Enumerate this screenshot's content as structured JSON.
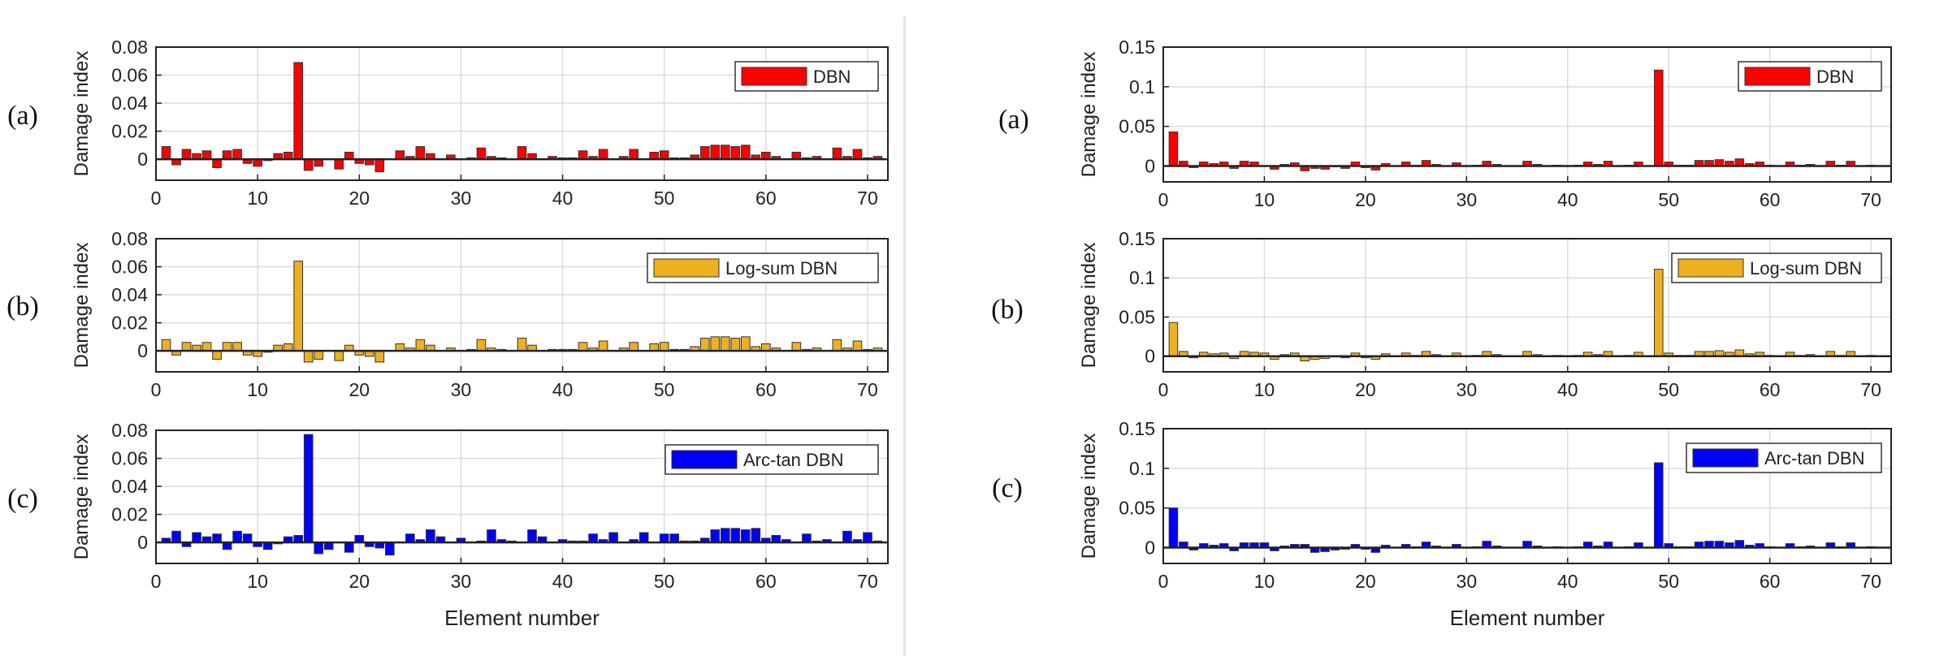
{
  "colors": {
    "a": "#ff0000",
    "b": "#edb120",
    "c": "#0000ff",
    "grid": "#dcdcdc",
    "axis": "#222222"
  },
  "chart_data": [
    {
      "type": "bar",
      "panel_label": "(a)",
      "legend": "DBN",
      "color": "#ff0000",
      "ylabel": "Damage index",
      "xlabel": "",
      "title": "",
      "xlim": [
        0,
        72
      ],
      "ylim": [
        -0.015,
        0.08
      ],
      "xticks": [
        "0",
        "10",
        "20",
        "30",
        "40",
        "50",
        "60",
        "70"
      ],
      "yticks": [
        "0",
        "0.02",
        "0.04",
        "0.06",
        "0.08"
      ],
      "ytick_values": [
        0,
        0.02,
        0.04,
        0.06,
        0.08
      ],
      "values": [
        0,
        0.009,
        -0.004,
        0.007,
        0.004,
        0.006,
        -0.006,
        0.006,
        0.007,
        -0.003,
        -0.005,
        -0.001,
        0.004,
        0.005,
        0.069,
        -0.008,
        -0.005,
        0,
        -0.007,
        0.005,
        -0.003,
        -0.004,
        -0.009,
        0,
        0.006,
        0.002,
        0.009,
        0.004,
        0,
        0.003,
        0,
        0.001,
        0.008,
        0.002,
        0.001,
        0,
        0.009,
        0.004,
        0,
        0.002,
        0.001,
        0.001,
        0.006,
        0.002,
        0.007,
        0,
        0.002,
        0.007,
        0,
        0.005,
        0.006,
        0.001,
        0.001,
        0.003,
        0.009,
        0.01,
        0.01,
        0.009,
        0.01,
        0.003,
        0.005,
        0.002,
        0,
        0.005,
        0.001,
        0.002,
        0,
        0.008,
        0.002,
        0.007,
        0.001,
        0.002
      ]
    },
    {
      "type": "bar",
      "panel_label": "(b)",
      "legend": "Log-sum DBN",
      "color": "#edb120",
      "ylabel": "Damage index",
      "xlabel": "",
      "title": "",
      "xlim": [
        0,
        72
      ],
      "ylim": [
        -0.015,
        0.08
      ],
      "xticks": [
        "0",
        "10",
        "20",
        "30",
        "40",
        "50",
        "60",
        "70"
      ],
      "yticks": [
        "0",
        "0.02",
        "0.04",
        "0.06",
        "0.08"
      ],
      "ytick_values": [
        0,
        0.02,
        0.04,
        0.06,
        0.08
      ],
      "values": [
        0,
        0.008,
        -0.003,
        0.006,
        0.004,
        0.006,
        -0.006,
        0.006,
        0.006,
        -0.003,
        -0.004,
        -0.001,
        0.004,
        0.005,
        0.064,
        -0.008,
        -0.006,
        0,
        -0.007,
        0.004,
        -0.003,
        -0.004,
        -0.008,
        0,
        0.005,
        0.002,
        0.008,
        0.004,
        0,
        0.002,
        0,
        0.001,
        0.008,
        0.002,
        0.001,
        0,
        0.009,
        0.004,
        0,
        0.001,
        0.001,
        0.001,
        0.006,
        0.002,
        0.007,
        0,
        0.002,
        0.006,
        0,
        0.005,
        0.006,
        0.001,
        0.001,
        0.003,
        0.009,
        0.01,
        0.01,
        0.009,
        0.01,
        0.003,
        0.005,
        0.002,
        0,
        0.006,
        0.001,
        0.002,
        0,
        0.008,
        0.002,
        0.007,
        0.001,
        0.002
      ]
    },
    {
      "type": "bar",
      "panel_label": "(c)",
      "legend": "Arc-tan DBN",
      "color": "#0000ff",
      "ylabel": "Damage index",
      "xlabel": "Element number",
      "title": "",
      "xlim": [
        0,
        72
      ],
      "ylim": [
        -0.015,
        0.08
      ],
      "xticks": [
        "0",
        "10",
        "20",
        "30",
        "40",
        "50",
        "60",
        "70"
      ],
      "yticks": [
        "0",
        "0.02",
        "0.04",
        "0.06",
        "0.08"
      ],
      "ytick_values": [
        0,
        0.02,
        0.04,
        0.06,
        0.08
      ],
      "values": [
        0,
        0.003,
        0.008,
        -0.003,
        0.007,
        0.004,
        0.006,
        -0.005,
        0.008,
        0.006,
        -0.003,
        -0.005,
        -0.001,
        0.004,
        0.005,
        0.077,
        -0.008,
        -0.005,
        0,
        -0.007,
        0.005,
        -0.003,
        -0.004,
        -0.009,
        0,
        0.006,
        0.002,
        0.009,
        0.004,
        0,
        0.003,
        0,
        0.001,
        0.009,
        0.002,
        0.001,
        0,
        0.009,
        0.004,
        0,
        0.002,
        0.001,
        0.001,
        0.006,
        0.002,
        0.007,
        0,
        0.002,
        0.007,
        0,
        0.006,
        0.006,
        0.001,
        0.001,
        0.003,
        0.009,
        0.01,
        0.01,
        0.009,
        0.01,
        0.003,
        0.005,
        0.002,
        0,
        0.006,
        0.001,
        0.002,
        0,
        0.008,
        0.002,
        0.007,
        0.001
      ]
    },
    {
      "type": "bar",
      "panel_label": "(a)",
      "legend": "DBN",
      "color": "#ff0000",
      "ylabel": "Damage index",
      "xlabel": "",
      "title": "",
      "xlim": [
        0,
        72
      ],
      "ylim": [
        -0.02,
        0.15
      ],
      "xticks": [
        "0",
        "10",
        "20",
        "30",
        "40",
        "50",
        "60",
        "70"
      ],
      "yticks": [
        "0",
        "0.05",
        "0.1",
        "0.15"
      ],
      "ytick_values": [
        0,
        0.05,
        0.1,
        0.15
      ],
      "values": [
        0,
        0.043,
        0.006,
        -0.002,
        0.005,
        0.003,
        0.005,
        -0.003,
        0.006,
        0.005,
        0,
        -0.004,
        0.002,
        0.004,
        -0.006,
        -0.003,
        -0.004,
        -0.001,
        -0.003,
        0.005,
        -0.002,
        -0.005,
        0.003,
        0,
        0.005,
        0.001,
        0.007,
        0.002,
        0,
        0.004,
        0,
        0.001,
        0.006,
        0.002,
        0,
        0,
        0.006,
        0.002,
        0,
        0.001,
        0,
        0.001,
        0.005,
        0.002,
        0.006,
        0,
        0.001,
        0.005,
        0,
        0.121,
        0.005,
        0.001,
        0.001,
        0.007,
        0.007,
        0.008,
        0.006,
        0.009,
        0.003,
        0.005,
        0.001,
        0,
        0.005,
        0.001,
        0.002,
        0,
        0.006,
        0.001,
        0.006,
        0,
        0.001,
        0
      ]
    },
    {
      "type": "bar",
      "panel_label": "(b)",
      "legend": "Log-sum DBN",
      "color": "#edb120",
      "ylabel": "Damage index",
      "xlabel": "",
      "title": "",
      "xlim": [
        0,
        72
      ],
      "ylim": [
        -0.02,
        0.15
      ],
      "xticks": [
        "0",
        "10",
        "20",
        "30",
        "40",
        "50",
        "60",
        "70"
      ],
      "yticks": [
        "0",
        "0.05",
        "0.1",
        "0.15"
      ],
      "ytick_values": [
        0,
        0.05,
        0.1,
        0.15
      ],
      "values": [
        0,
        0.043,
        0.006,
        -0.002,
        0.005,
        0.003,
        0.004,
        -0.003,
        0.006,
        0.005,
        0.004,
        -0.004,
        0.002,
        0.004,
        -0.006,
        -0.004,
        -0.003,
        -0.001,
        -0.002,
        0.004,
        -0.002,
        -0.004,
        0.003,
        0,
        0.004,
        0.001,
        0.006,
        0.002,
        0,
        0.004,
        0,
        0.001,
        0.006,
        0.002,
        0,
        0,
        0.006,
        0.002,
        0,
        0.001,
        0,
        0.001,
        0.005,
        0.002,
        0.006,
        0,
        0.001,
        0.005,
        0,
        0.111,
        0.004,
        0.001,
        0.001,
        0.006,
        0.006,
        0.007,
        0.005,
        0.008,
        0.003,
        0.005,
        0.001,
        0,
        0.005,
        0.001,
        0.002,
        0,
        0.006,
        0.001,
        0.006,
        0,
        0.001,
        0
      ]
    },
    {
      "type": "bar",
      "panel_label": "(c)",
      "legend": "Arc-tan DBN",
      "color": "#0000ff",
      "ylabel": "Damage index",
      "xlabel": "Element number",
      "title": "",
      "xlim": [
        0,
        72
      ],
      "ylim": [
        -0.02,
        0.15
      ],
      "xticks": [
        "0",
        "10",
        "20",
        "30",
        "40",
        "50",
        "60",
        "70"
      ],
      "yticks": [
        "0",
        "0.05",
        "0.1",
        "0.15"
      ],
      "ytick_values": [
        0,
        0.05,
        0.1,
        0.15
      ],
      "values": [
        0,
        0.05,
        0.007,
        -0.003,
        0.005,
        0.003,
        0.005,
        -0.004,
        0.006,
        0.006,
        0.006,
        -0.004,
        0.002,
        0.004,
        0.004,
        -0.006,
        -0.005,
        -0.003,
        -0.002,
        0.004,
        -0.002,
        -0.006,
        0.003,
        0,
        0.004,
        0.001,
        0.007,
        0.002,
        0,
        0.004,
        0,
        0.001,
        0.008,
        0.002,
        0,
        0,
        0.008,
        0.002,
        0,
        0.001,
        0,
        0.001,
        0.007,
        0.002,
        0.007,
        0,
        0.001,
        0.006,
        0,
        0.107,
        0.005,
        0.001,
        0.001,
        0.007,
        0.008,
        0.008,
        0.006,
        0.009,
        0.003,
        0.005,
        0.001,
        0,
        0.005,
        0.001,
        0.002,
        0,
        0.006,
        0.001,
        0.006,
        0,
        0.001,
        0
      ]
    }
  ]
}
